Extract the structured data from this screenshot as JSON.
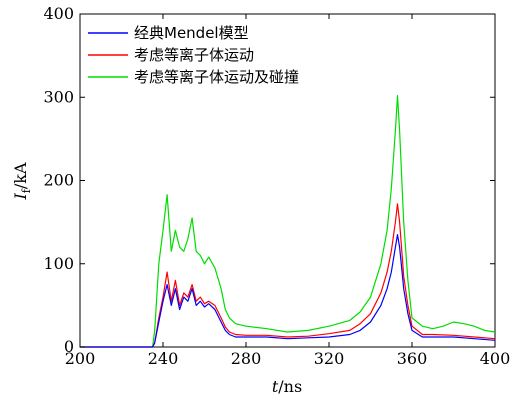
{
  "chart_data": {
    "type": "line",
    "xlabel": "t/ns",
    "ylabel": "If/kA",
    "xlim": [
      200,
      400
    ],
    "ylim": [
      0,
      400
    ],
    "xticks": [
      200,
      240,
      280,
      320,
      360,
      400
    ],
    "yticks": [
      0,
      100,
      200,
      300,
      400
    ],
    "legend_position": "top-left",
    "series": [
      {
        "name": "经典Mendel模型",
        "color": "#0000ff",
        "points": [
          [
            200,
            0
          ],
          [
            235,
            0
          ],
          [
            236,
            5
          ],
          [
            238,
            30
          ],
          [
            240,
            55
          ],
          [
            242,
            75
          ],
          [
            244,
            50
          ],
          [
            246,
            70
          ],
          [
            248,
            45
          ],
          [
            250,
            60
          ],
          [
            252,
            55
          ],
          [
            254,
            70
          ],
          [
            256,
            50
          ],
          [
            258,
            55
          ],
          [
            260,
            48
          ],
          [
            262,
            52
          ],
          [
            265,
            45
          ],
          [
            268,
            30
          ],
          [
            270,
            20
          ],
          [
            272,
            15
          ],
          [
            275,
            12
          ],
          [
            280,
            12
          ],
          [
            290,
            12
          ],
          [
            300,
            10
          ],
          [
            310,
            11
          ],
          [
            320,
            12
          ],
          [
            330,
            15
          ],
          [
            335,
            20
          ],
          [
            340,
            30
          ],
          [
            345,
            50
          ],
          [
            348,
            70
          ],
          [
            350,
            90
          ],
          [
            352,
            120
          ],
          [
            353,
            135
          ],
          [
            354,
            120
          ],
          [
            356,
            70
          ],
          [
            358,
            40
          ],
          [
            360,
            20
          ],
          [
            365,
            12
          ],
          [
            370,
            12
          ],
          [
            380,
            12
          ],
          [
            390,
            10
          ],
          [
            400,
            8
          ]
        ]
      },
      {
        "name": "考虑等离子体运动",
        "color": "#ff0000",
        "points": [
          [
            200,
            0
          ],
          [
            235,
            0
          ],
          [
            236,
            5
          ],
          [
            238,
            35
          ],
          [
            240,
            60
          ],
          [
            242,
            90
          ],
          [
            244,
            55
          ],
          [
            246,
            80
          ],
          [
            248,
            50
          ],
          [
            250,
            65
          ],
          [
            252,
            60
          ],
          [
            254,
            75
          ],
          [
            256,
            55
          ],
          [
            258,
            60
          ],
          [
            260,
            52
          ],
          [
            262,
            55
          ],
          [
            265,
            50
          ],
          [
            268,
            35
          ],
          [
            270,
            24
          ],
          [
            272,
            18
          ],
          [
            275,
            15
          ],
          [
            280,
            14
          ],
          [
            290,
            14
          ],
          [
            300,
            12
          ],
          [
            310,
            13
          ],
          [
            320,
            16
          ],
          [
            330,
            20
          ],
          [
            335,
            28
          ],
          [
            340,
            40
          ],
          [
            345,
            65
          ],
          [
            348,
            90
          ],
          [
            350,
            115
          ],
          [
            352,
            150
          ],
          [
            353,
            172
          ],
          [
            354,
            150
          ],
          [
            356,
            85
          ],
          [
            358,
            50
          ],
          [
            360,
            25
          ],
          [
            365,
            15
          ],
          [
            370,
            15
          ],
          [
            380,
            14
          ],
          [
            390,
            12
          ],
          [
            400,
            10
          ]
        ]
      },
      {
        "name": "考虑等离子体运动及碰撞",
        "color": "#00dd00",
        "points": [
          [
            200,
            0
          ],
          [
            235,
            0
          ],
          [
            236,
            20
          ],
          [
            238,
            100
          ],
          [
            240,
            140
          ],
          [
            242,
            183
          ],
          [
            244,
            115
          ],
          [
            246,
            140
          ],
          [
            248,
            120
          ],
          [
            250,
            115
          ],
          [
            252,
            130
          ],
          [
            254,
            155
          ],
          [
            256,
            115
          ],
          [
            258,
            110
          ],
          [
            260,
            100
          ],
          [
            262,
            108
          ],
          [
            265,
            95
          ],
          [
            268,
            70
          ],
          [
            270,
            45
          ],
          [
            272,
            35
          ],
          [
            275,
            28
          ],
          [
            280,
            25
          ],
          [
            290,
            22
          ],
          [
            300,
            18
          ],
          [
            310,
            20
          ],
          [
            320,
            25
          ],
          [
            330,
            32
          ],
          [
            335,
            42
          ],
          [
            340,
            60
          ],
          [
            345,
            100
          ],
          [
            348,
            140
          ],
          [
            350,
            190
          ],
          [
            352,
            260
          ],
          [
            353,
            302
          ],
          [
            354,
            260
          ],
          [
            356,
            150
          ],
          [
            358,
            80
          ],
          [
            360,
            35
          ],
          [
            365,
            25
          ],
          [
            370,
            22
          ],
          [
            375,
            25
          ],
          [
            380,
            30
          ],
          [
            385,
            28
          ],
          [
            390,
            25
          ],
          [
            395,
            20
          ],
          [
            400,
            18
          ]
        ]
      }
    ]
  }
}
